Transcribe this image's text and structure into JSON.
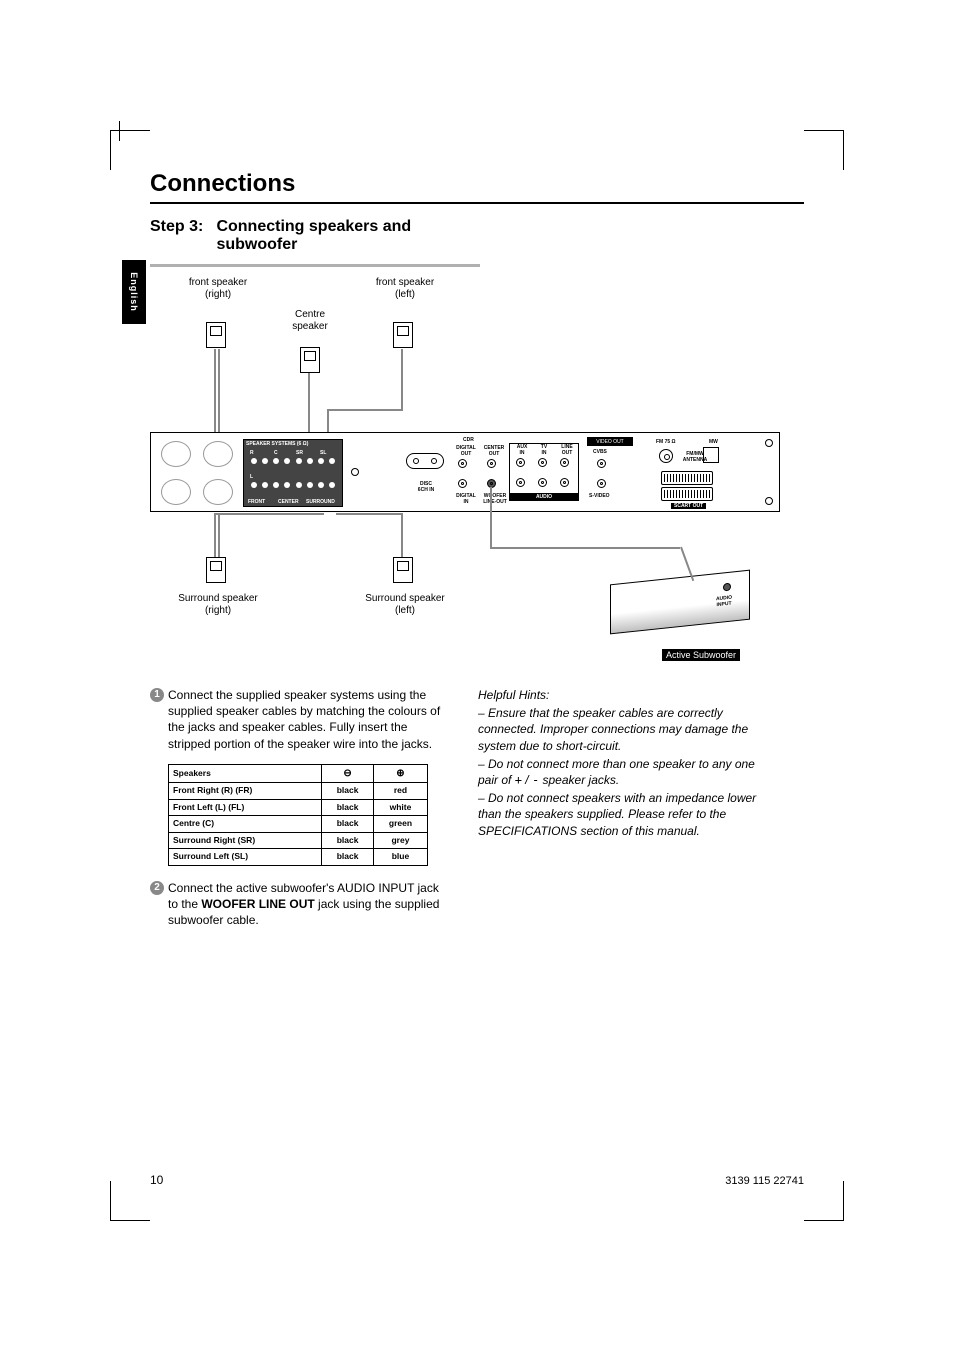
{
  "sideTab": "English",
  "sectionTitle": "Connections",
  "step": {
    "num": "Step 3:",
    "title": "Connecting speakers and subwoofer"
  },
  "diagram": {
    "frontRight": "front speaker\n(right)",
    "frontLeft": "front speaker\n(left)",
    "centre": "Centre\nspeaker",
    "surrRight": "Surround speaker\n(right)",
    "surrLeft": "Surround speaker\n(left)",
    "subwoofer": "Active Subwoofer",
    "panel": {
      "speakerSystems": "SPEAKER SYSTEMS (6 Ω)",
      "terms": [
        "R",
        "C",
        "SR",
        "SL"
      ],
      "termRow2": [
        "FRONT",
        "CENTER",
        "SURROUND"
      ],
      "lTop": "L",
      "cdr": "CDR",
      "digitalOut": "DIGITAL\nOUT",
      "centerOut": "CENTER\nOUT",
      "auxIn": "AUX\nIN",
      "tvIn": "TV\nIN",
      "lineOut": "LINE\nOUT",
      "cvbs": "CVBS",
      "svideo": "S-VIDEO",
      "digitalIn": "DIGITAL\nIN",
      "wooferLineOut": "WOOFER\nLINE-OUT",
      "audio": "AUDIO",
      "disc6ch": "DISC\n6CH IN",
      "videoOut": "VIDEO OUT",
      "fm75": "FM 75 Ω",
      "mw": "MW",
      "fmMwAnt": "FM/MW\nANTENNA",
      "scartOut": "SCART OUT"
    },
    "subJack": "AUDIO\nINPUT"
  },
  "body": {
    "p1": "Connect the supplied speaker systems using the supplied speaker cables by matching the colours of the jacks and speaker cables.  Fully insert the stripped portion of the speaker wire into the jacks.",
    "p2a": "Connect the active subwoofer's AUDIO INPUT jack to the ",
    "p2b": "WOOFER LINE OUT",
    "p2c": " jack using the supplied subwoofer cable."
  },
  "table": {
    "header": "Speakers",
    "symMinus": "⊖",
    "symPlus": "⊕",
    "rows": [
      {
        "name": "Front Right (R) (FR)",
        "neg": "black",
        "pos": "red"
      },
      {
        "name": "Front Left (L) (FL)",
        "neg": "black",
        "pos": "white"
      },
      {
        "name": "Centre (C)",
        "neg": "black",
        "pos": "green"
      },
      {
        "name": "Surround Right (SR)",
        "neg": "black",
        "pos": "grey"
      },
      {
        "name": "Surround Left (SL)",
        "neg": "black",
        "pos": "blue"
      }
    ]
  },
  "hints": {
    "title": "Helpful Hints:",
    "l1": "–  Ensure that the speaker cables are correctly connected.  Improper connections may damage the system due to short-circuit.",
    "l2a": "–  Do not connect more than one speaker to any one pair of ",
    "l2b": "+",
    "l2c": " / ",
    "l2d": "-",
    "l2e": "  speaker jacks.",
    "l3": "–  Do not connect speakers with an impedance lower than the speakers supplied.  Please refer to the SPECIFICATIONS section of this manual."
  },
  "pageNum": "10",
  "docCode": "3139 115 22741"
}
